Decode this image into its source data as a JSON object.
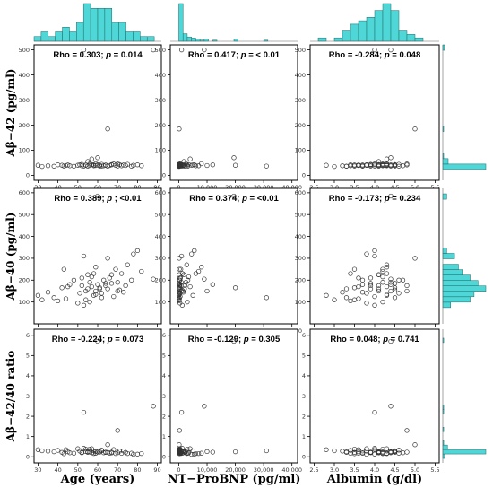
{
  "chart_data": {
    "type": "scatter",
    "layout": "3x3 scatter matrix with marginal histograms (top and right)",
    "colors": {
      "histogram_fill": "#4fd6d6",
      "histogram_stroke": "#1a6b6b",
      "point_stroke": "#333333"
    },
    "columns": [
      {
        "label": "Age (years)",
        "xlim": [
          28,
          92
        ],
        "ticks": [
          30,
          40,
          50,
          60,
          70,
          80,
          90
        ],
        "tick_labels": [
          "30",
          "40",
          "50",
          "60",
          "70",
          "80",
          "90"
        ]
      },
      {
        "label": "NT−ProBNP (pg/ml)",
        "xlim": [
          -3000,
          42000
        ],
        "ticks": [
          0,
          10000,
          20000,
          30000,
          40000
        ],
        "tick_labels": [
          "0",
          "10,000",
          "20,000",
          "30,000",
          "40,000"
        ]
      },
      {
        "label": "Albumin (g/dl)",
        "xlim": [
          2.4,
          5.6
        ],
        "ticks": [
          2.5,
          3.0,
          3.5,
          4.0,
          4.5,
          5.0,
          5.5
        ],
        "tick_labels": [
          "2.5",
          "3.0",
          "3.5",
          "4.0",
          "4.5",
          "5.0",
          "5.5"
        ]
      }
    ],
    "rows": [
      {
        "label_prefix": "Aβ−42",
        "label_suffix": " (pg/ml)",
        "ylim": [
          -20,
          520
        ],
        "ticks": [
          0,
          100,
          200,
          300,
          400,
          500
        ],
        "tick_labels": [
          "0",
          "100",
          "200",
          "300",
          "400",
          "500"
        ]
      },
      {
        "label_prefix": "Aβ−40",
        "label_suffix": " (pg/ml)",
        "ylim": [
          0,
          620
        ],
        "ticks": [
          100,
          200,
          300,
          400,
          500,
          600
        ],
        "tick_labels": [
          "100",
          "200",
          "300",
          "400",
          "500",
          "600"
        ]
      },
      {
        "label_prefix": "Aβ−42/40",
        "label_suffix": " ratio",
        "ylim": [
          -0.3,
          6.3
        ],
        "ticks": [
          0,
          1,
          2,
          3,
          4,
          5,
          6
        ],
        "tick_labels": [
          "0",
          "1",
          "2",
          "3",
          "4",
          "5",
          "6"
        ]
      }
    ],
    "panels": [
      [
        {
          "rho": "0.303",
          "p": "0.014",
          "op": "="
        },
        {
          "rho": "0.417",
          "p": "< 0.01",
          "op": "="
        },
        {
          "rho": "-0.284",
          "p": "0.048",
          "op": "="
        }
      ],
      [
        {
          "rho": "0.389",
          "p": "<0.01",
          "op": ";"
        },
        {
          "rho": "0.374",
          "p": "<0.01",
          "op": "="
        },
        {
          "rho": "-0.173",
          "p": "0.234",
          "op": "="
        }
      ],
      [
        {
          "rho": "-0.224",
          "p": "0.073",
          "op": "="
        },
        {
          "rho": "-0.129",
          "p": "0.305",
          "op": "="
        },
        {
          "rho": "0.048",
          "p": "0.741",
          "op": "="
        }
      ]
    ],
    "variables": {
      "age": [
        30,
        32,
        35,
        38,
        40,
        42,
        43,
        44,
        45,
        46,
        48,
        50,
        51,
        52,
        52,
        53,
        53,
        54,
        55,
        55,
        56,
        56,
        57,
        57,
        58,
        58,
        59,
        59,
        60,
        60,
        61,
        62,
        62,
        63,
        64,
        65,
        65,
        66,
        67,
        68,
        69,
        70,
        71,
        72,
        73,
        74,
        75,
        77,
        78,
        80,
        82,
        88,
        54,
        61,
        67,
        59,
        64,
        70
      ],
      "ntprobnp": [
        50,
        80,
        100,
        120,
        150,
        180,
        200,
        220,
        250,
        300,
        350,
        400,
        500,
        600,
        800,
        1000,
        1200,
        1500,
        1800,
        2000,
        2500,
        3000,
        3500,
        4000,
        5000,
        6000,
        8000,
        10000,
        12000,
        19500,
        20000,
        31000,
        100,
        200,
        300,
        150,
        250,
        400,
        80,
        500,
        700,
        900,
        1100,
        1300,
        1600,
        2200,
        2800,
        3200,
        4500,
        5500,
        7000,
        9000,
        60,
        90,
        130,
        170,
        210,
        260
      ],
      "albumin": [
        2.8,
        3.0,
        3.2,
        3.3,
        3.4,
        3.5,
        3.5,
        3.6,
        3.6,
        3.7,
        3.7,
        3.8,
        3.8,
        3.9,
        3.9,
        4.0,
        4.0,
        4.1,
        4.1,
        4.1,
        4.2,
        4.2,
        4.2,
        4.3,
        4.3,
        4.3,
        4.3,
        4.4,
        4.4,
        4.4,
        4.5,
        4.5,
        4.6,
        4.7,
        4.8,
        5.0,
        3.3,
        3.6,
        3.9,
        4.0,
        4.2,
        4.4,
        4.5,
        3.4,
        3.7,
        4.1,
        4.3,
        4.6,
        3.8,
        4.0,
        4.2,
        4.4,
        3.5,
        3.9,
        4.1,
        4.3,
        4.5,
        4.8
      ],
      "ab42": [
        40,
        35,
        38,
        36,
        42,
        40,
        37,
        39,
        41,
        38,
        36,
        40,
        42,
        44,
        38,
        500,
        37,
        40,
        55,
        36,
        45,
        39,
        43,
        65,
        41,
        38,
        46,
        39,
        42,
        70,
        40,
        37,
        44,
        38,
        41,
        185,
        36,
        39,
        42,
        45,
        40,
        37,
        43,
        38,
        41,
        39,
        44,
        36,
        40,
        42,
        38,
        500,
        41,
        37,
        43,
        39,
        40,
        45
      ],
      "ab40": [
        130,
        110,
        145,
        120,
        105,
        165,
        250,
        115,
        170,
        180,
        200,
        95,
        140,
        210,
        175,
        310,
        85,
        150,
        225,
        160,
        190,
        100,
        215,
        170,
        130,
        230,
        260,
        150,
        180,
        585,
        165,
        120,
        140,
        200,
        175,
        300,
        160,
        210,
        185,
        125,
        250,
        190,
        155,
        230,
        145,
        175,
        270,
        200,
        320,
        335,
        240,
        205,
        110,
        160,
        225,
        135,
        185,
        150
      ],
      "ratio": [
        0.35,
        0.3,
        0.28,
        0.25,
        0.32,
        0.22,
        0.15,
        0.35,
        0.25,
        0.2,
        0.18,
        0.4,
        0.28,
        0.22,
        0.2,
        2.2,
        0.42,
        0.26,
        0.25,
        0.22,
        0.24,
        0.38,
        0.2,
        0.4,
        0.3,
        0.16,
        0.18,
        0.26,
        0.23,
        5.7,
        0.25,
        0.3,
        0.33,
        0.2,
        0.23,
        0.6,
        0.22,
        0.18,
        0.23,
        0.36,
        0.16,
        0.2,
        0.28,
        0.17,
        0.29,
        0.22,
        0.16,
        0.18,
        0.12,
        0.13,
        0.16,
        2.5,
        0.38,
        0.23,
        0.19,
        0.29,
        0.22,
        1.3
      ]
    }
  }
}
